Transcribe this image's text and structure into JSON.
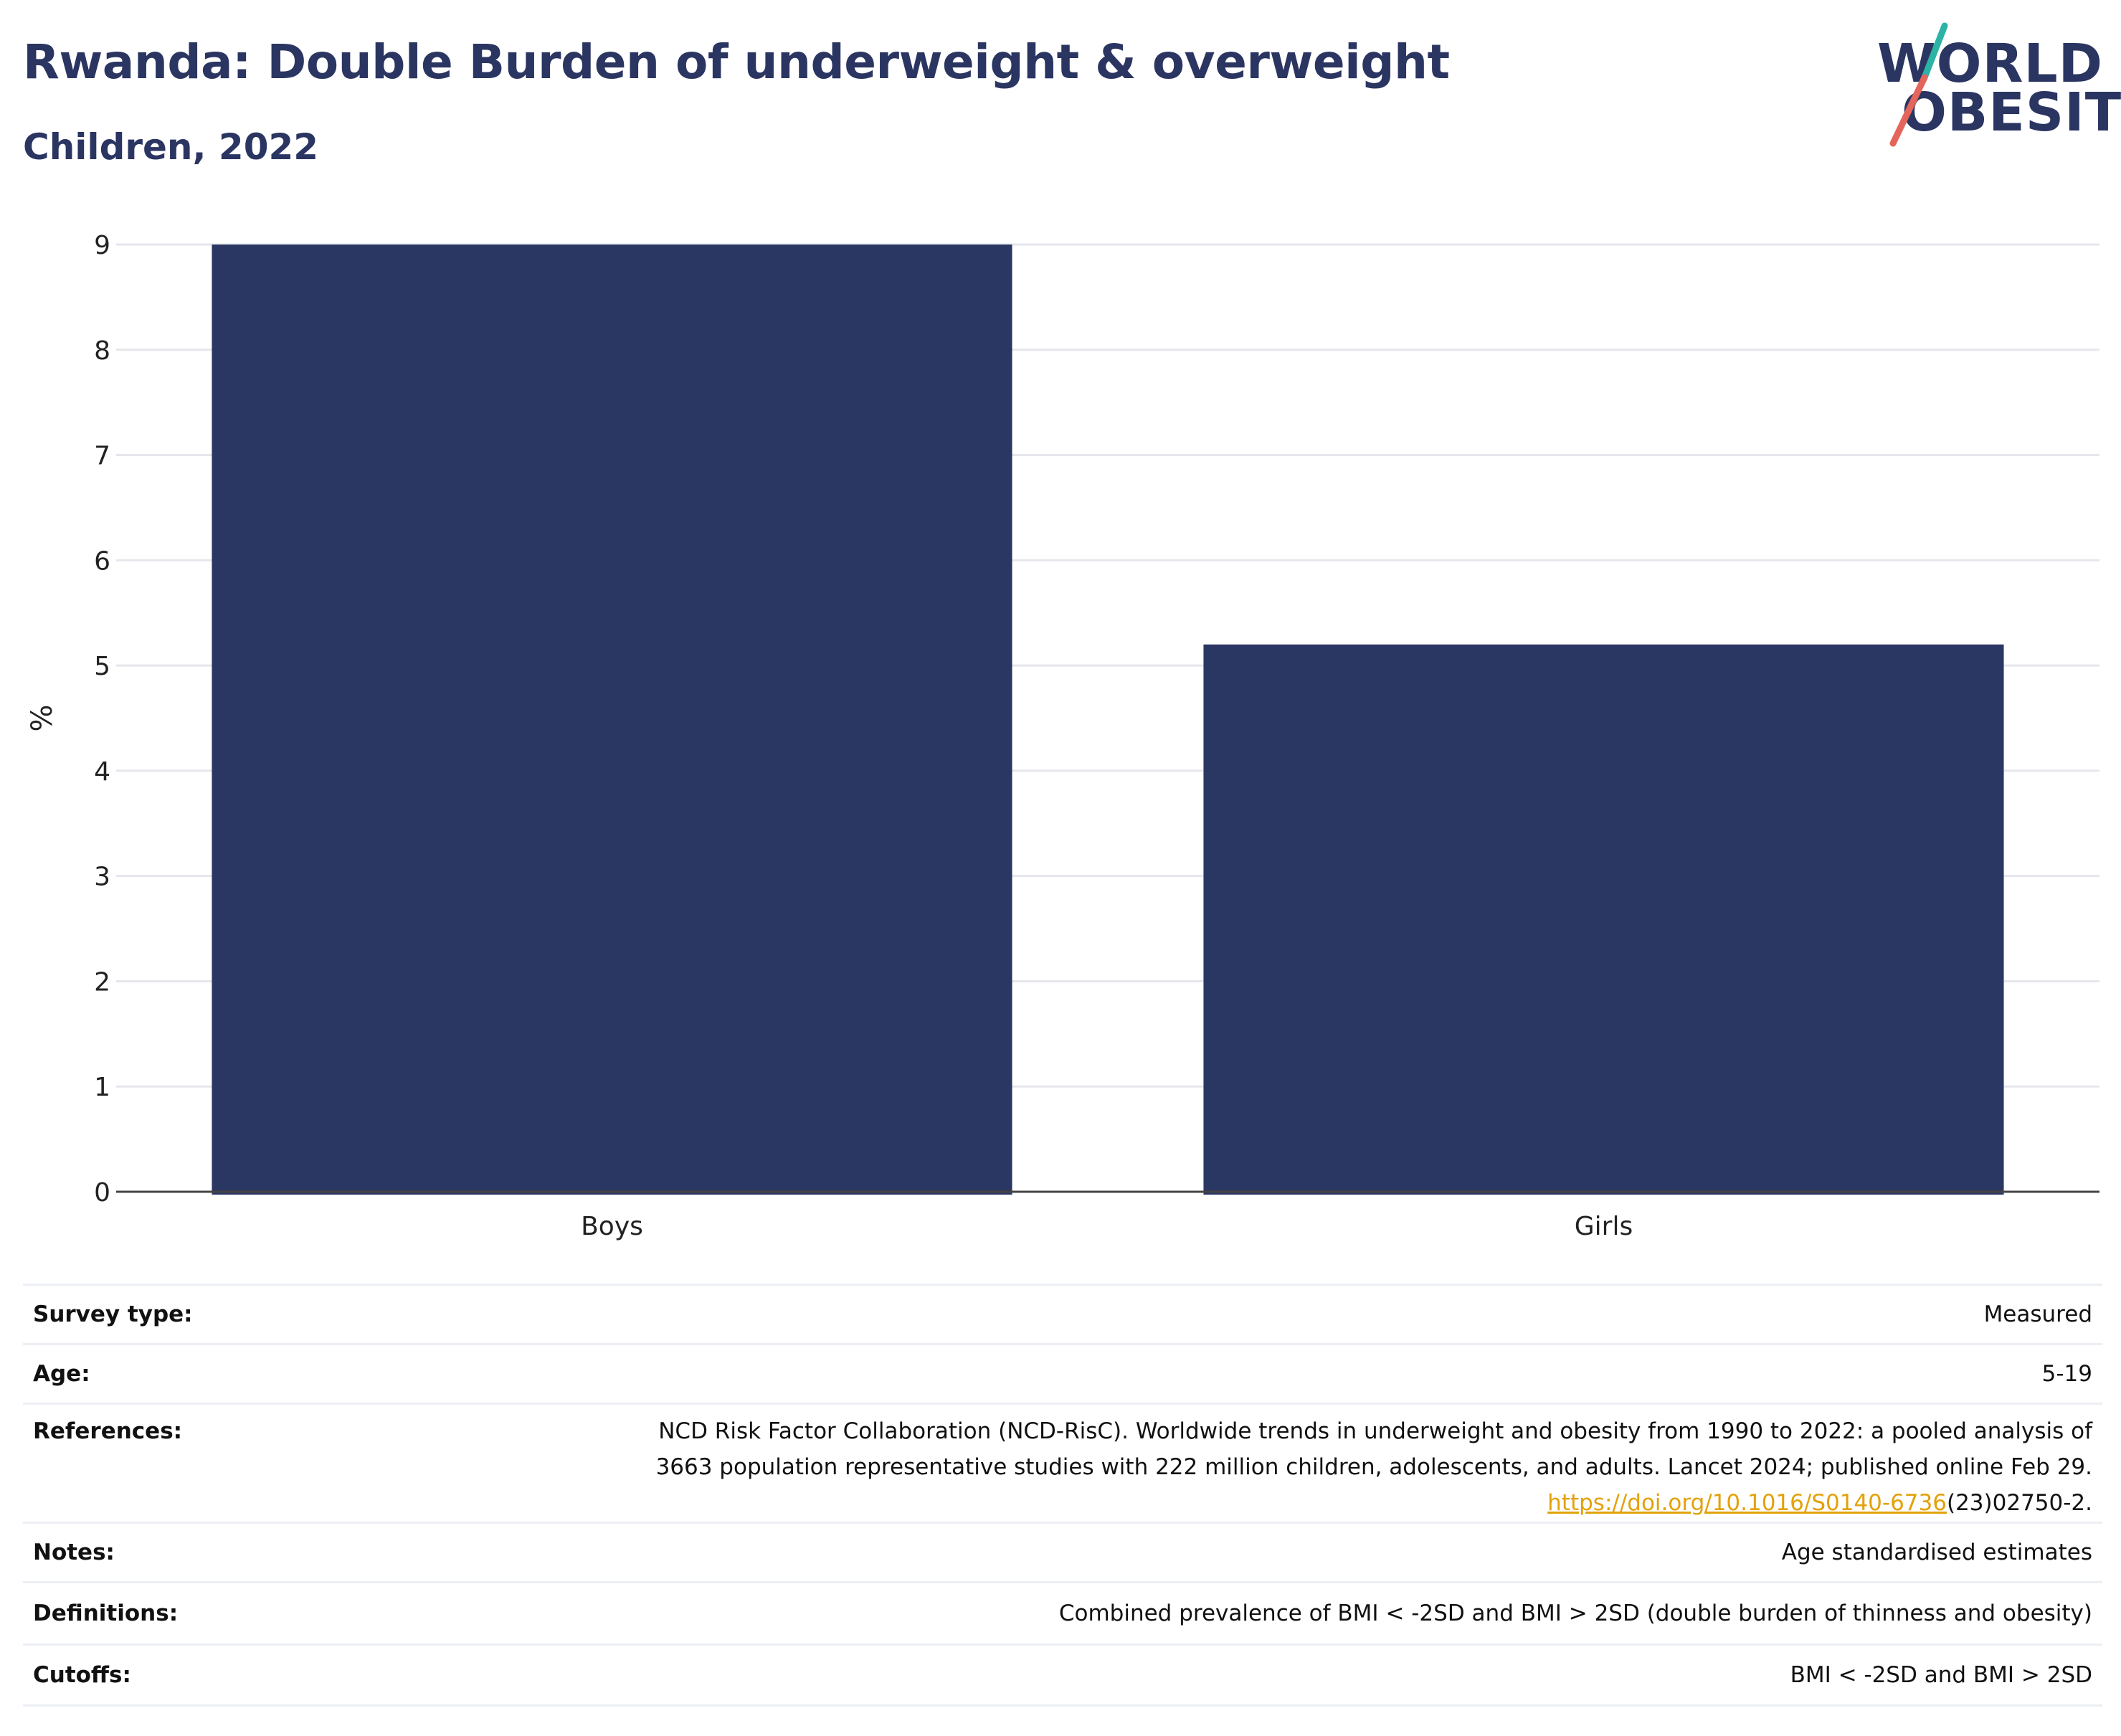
{
  "header": {
    "title": "Rwanda: Double Burden of underweight & overweight",
    "subtitle": "Children, 2022"
  },
  "logo": {
    "line1": "WORLD",
    "line2": "OBESITY",
    "colors": {
      "text": "#2b3561",
      "slash_top": "#2bb3a6",
      "slash_bottom": "#e4655b"
    }
  },
  "chart_data": {
    "type": "bar",
    "categories": [
      "Boys",
      "Girls"
    ],
    "values": [
      9.0,
      5.2
    ],
    "ylabel": "%",
    "ylim": [
      0,
      9
    ],
    "yticks": [
      0,
      1,
      2,
      3,
      4,
      5,
      6,
      7,
      8,
      9
    ],
    "grid": true,
    "bar_color": "#2b3763"
  },
  "info": {
    "survey_type": {
      "label": "Survey type:",
      "value": "Measured"
    },
    "age": {
      "label": "Age:",
      "value": "5-19"
    },
    "references": {
      "label": "References:",
      "line1": "NCD Risk Factor Collaboration (NCD-RisC). Worldwide trends in underweight and obesity from 1990 to 2022: a pooled analysis of",
      "line2": "3663 population representative studies with 222 million children, adolescents, and adults. Lancet 2024; published online Feb 29.",
      "link": "https://doi.org/10.1016/S0140-6736",
      "link_suffix": "(23)02750-2."
    },
    "notes": {
      "label": "Notes:",
      "value": "Age standardised estimates"
    },
    "definitions": {
      "label": "Definitions:",
      "value": "Combined prevalence of BMI < -2SD and BMI > 2SD (double burden of thinness and obesity)"
    },
    "cutoffs": {
      "label": "Cutoffs:",
      "value": "BMI < -2SD and BMI > 2SD"
    }
  }
}
